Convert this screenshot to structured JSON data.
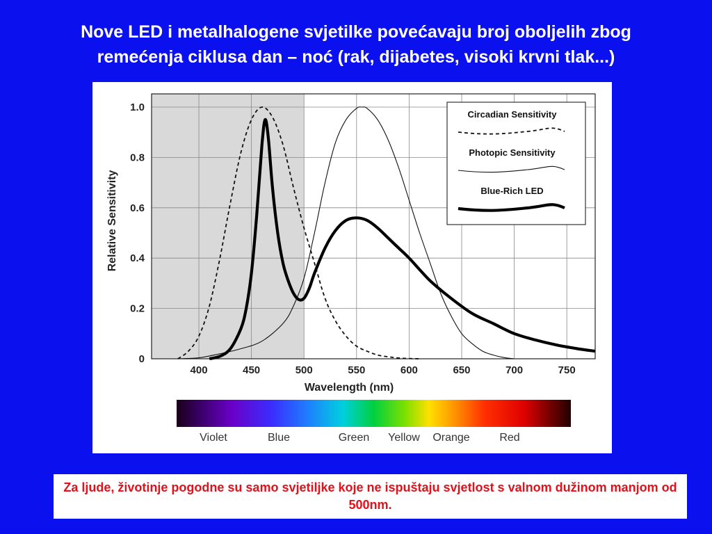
{
  "slide": {
    "title_line1": "Nove LED i metalhalogene svjetilke povećavaju broj oboljelih zbog",
    "title_line2": "remećenja ciklusa dan – noć (rak, dijabetes, visoki krvni tlak...)",
    "note": "Za ljude, životinje pogodne su samo svjetiljke koje ne ispuštaju svjetlost s valnom dužinom manjom od 500nm."
  },
  "colors": {
    "background": "#0b10ee",
    "shaded_region": "#d9d9d9",
    "note_text": "#e4101a"
  },
  "chart_data": {
    "type": "line",
    "xlabel": "Wavelength (nm)",
    "ylabel": "Relative Sensitivity",
    "xlim": [
      355,
      777
    ],
    "ylim": [
      0,
      1.05
    ],
    "x_ticks": [
      400,
      450,
      500,
      550,
      600,
      650,
      700,
      750
    ],
    "y_ticks": [
      0,
      0.2,
      0.4,
      0.6,
      0.8,
      1.0
    ],
    "y_tick_labels": [
      "0",
      "0.2",
      "0.4",
      "0.6",
      "0.8",
      "1.0"
    ],
    "grid": true,
    "shaded_range": [
      355,
      500
    ],
    "legend_position": "top-right",
    "series": [
      {
        "name": "Circadian Sensitivity",
        "style": "dashed",
        "x": [
          380,
          390,
          400,
          410,
          420,
          430,
          440,
          450,
          460,
          470,
          480,
          490,
          500,
          510,
          520,
          530,
          540,
          550,
          560,
          570,
          580,
          590,
          600,
          610
        ],
        "y": [
          0.0,
          0.03,
          0.09,
          0.21,
          0.4,
          0.62,
          0.82,
          0.95,
          1.0,
          0.96,
          0.85,
          0.68,
          0.52,
          0.38,
          0.24,
          0.15,
          0.09,
          0.05,
          0.03,
          0.015,
          0.008,
          0.003,
          0.001,
          0.0
        ]
      },
      {
        "name": "Photopic Sensitivity",
        "style": "thin",
        "x": [
          380,
          400,
          420,
          440,
          460,
          480,
          490,
          500,
          510,
          520,
          530,
          540,
          550,
          555,
          560,
          570,
          580,
          590,
          600,
          610,
          620,
          630,
          640,
          650,
          660,
          670,
          680,
          690,
          700
        ],
        "y": [
          0.0,
          0.004,
          0.02,
          0.04,
          0.07,
          0.14,
          0.21,
          0.32,
          0.5,
          0.7,
          0.86,
          0.95,
          0.995,
          1.0,
          0.995,
          0.95,
          0.87,
          0.76,
          0.63,
          0.5,
          0.38,
          0.26,
          0.17,
          0.1,
          0.06,
          0.03,
          0.015,
          0.005,
          0.0
        ]
      },
      {
        "name": "Blue-Rich LED",
        "style": "bold",
        "x": [
          410,
          420,
          430,
          440,
          445,
          450,
          455,
          460,
          463,
          466,
          470,
          475,
          480,
          485,
          490,
          495,
          500,
          505,
          510,
          520,
          530,
          540,
          550,
          560,
          570,
          580,
          590,
          600,
          620,
          640,
          660,
          680,
          700,
          720,
          740,
          760,
          777
        ],
        "y": [
          0.0,
          0.01,
          0.04,
          0.12,
          0.2,
          0.34,
          0.57,
          0.85,
          0.95,
          0.88,
          0.68,
          0.5,
          0.38,
          0.31,
          0.26,
          0.235,
          0.24,
          0.28,
          0.34,
          0.44,
          0.51,
          0.55,
          0.56,
          0.55,
          0.52,
          0.48,
          0.44,
          0.4,
          0.31,
          0.24,
          0.18,
          0.14,
          0.1,
          0.075,
          0.055,
          0.04,
          0.03
        ]
      }
    ],
    "spectrum_labels": [
      "Violet",
      "Blue",
      "Green",
      "Yellow",
      "Orange",
      "Red"
    ]
  }
}
